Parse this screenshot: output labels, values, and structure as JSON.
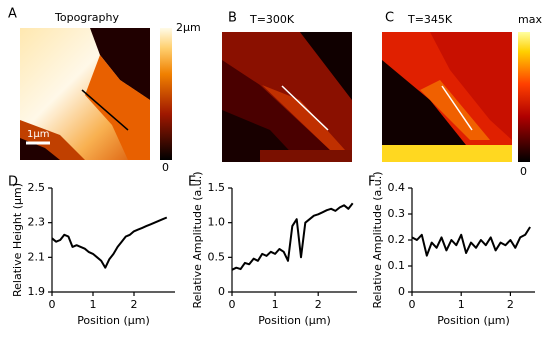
{
  "images": [
    {
      "panel": "A",
      "title": "Topography",
      "colorbar_max": "2μm",
      "colorbar_min": "0",
      "scale_bar": "1μm"
    },
    {
      "panel": "B",
      "title": "T=300K"
    },
    {
      "panel": "C",
      "title": "T=345K",
      "colorbar_max": "max",
      "colorbar_min": "0"
    }
  ],
  "chart_data": [
    {
      "type": "line",
      "panel": "D",
      "ylabel": "Relative Height (μm)",
      "xlabel": "Position (μm)",
      "color": "#000000",
      "xlim": [
        0,
        3
      ],
      "xticks": [
        0,
        1,
        2
      ],
      "ylim": [
        1.9,
        2.5
      ],
      "yticks": [
        1.9,
        2.1,
        2.3,
        2.5
      ],
      "x": [
        0,
        0.1,
        0.2,
        0.3,
        0.4,
        0.5,
        0.6,
        0.7,
        0.8,
        0.9,
        1,
        1.1,
        1.2,
        1.3,
        1.4,
        1.5,
        1.6,
        1.7,
        1.8,
        1.9,
        2,
        2.1,
        2.2,
        2.3,
        2.4,
        2.5,
        2.6,
        2.7,
        2.8
      ],
      "values": [
        2.21,
        2.19,
        2.2,
        2.23,
        2.22,
        2.16,
        2.17,
        2.16,
        2.15,
        2.13,
        2.12,
        2.1,
        2.08,
        2.04,
        2.09,
        2.12,
        2.16,
        2.19,
        2.22,
        2.23,
        2.25,
        2.26,
        2.27,
        2.28,
        2.29,
        2.3,
        2.31,
        2.32,
        2.33
      ]
    },
    {
      "type": "line",
      "panel": "E",
      "ylabel": "Relative Amplitude (a.u.)",
      "xlabel": "Position (μm)",
      "color": "#000000",
      "xlim": [
        0,
        2.9
      ],
      "xticks": [
        0,
        1,
        2
      ],
      "ylim": [
        0,
        1.5
      ],
      "yticks": [
        0,
        0.5,
        {
          "value": 1,
          "label": "1.0"
        },
        1.5
      ],
      "x": [
        0,
        0.1,
        0.2,
        0.3,
        0.4,
        0.5,
        0.6,
        0.7,
        0.8,
        0.9,
        1,
        1.1,
        1.2,
        1.3,
        1.4,
        1.5,
        1.6,
        1.7,
        1.8,
        1.9,
        2,
        2.1,
        2.2,
        2.3,
        2.4,
        2.5,
        2.6,
        2.7,
        2.8
      ],
      "values": [
        0.32,
        0.35,
        0.33,
        0.42,
        0.4,
        0.48,
        0.45,
        0.55,
        0.52,
        0.58,
        0.55,
        0.62,
        0.58,
        0.45,
        0.95,
        1.05,
        0.5,
        1,
        1.05,
        1.1,
        1.12,
        1.15,
        1.18,
        1.2,
        1.17,
        1.22,
        1.25,
        1.2,
        1.28
      ]
    },
    {
      "type": "line",
      "panel": "F",
      "ylabel": "Relative Amplitude (a.u.)",
      "xlabel": "Position (μm)",
      "color": "#000000",
      "xlim": [
        0,
        2.5
      ],
      "xticks": [
        0,
        1,
        2
      ],
      "ylim": [
        0,
        0.4
      ],
      "yticks": [
        0,
        0.1,
        0.2,
        0.3,
        0.4
      ],
      "x": [
        0,
        0.1,
        0.2,
        0.3,
        0.4,
        0.5,
        0.6,
        0.7,
        0.8,
        0.9,
        1,
        1.1,
        1.2,
        1.3,
        1.4,
        1.5,
        1.6,
        1.7,
        1.8,
        1.9,
        2,
        2.1,
        2.2,
        2.3,
        2.4
      ],
      "values": [
        0.21,
        0.2,
        0.22,
        0.14,
        0.19,
        0.17,
        0.21,
        0.16,
        0.2,
        0.18,
        0.22,
        0.15,
        0.19,
        0.17,
        0.2,
        0.18,
        0.21,
        0.16,
        0.19,
        0.18,
        0.2,
        0.17,
        0.21,
        0.22,
        0.25
      ]
    }
  ]
}
